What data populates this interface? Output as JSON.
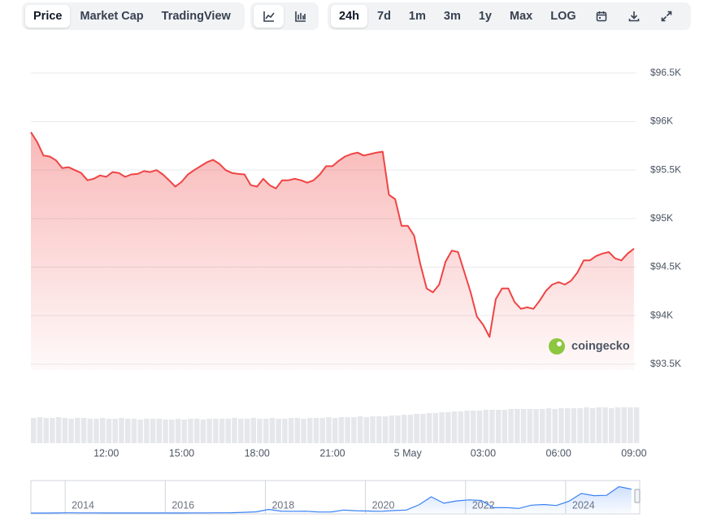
{
  "toolbar": {
    "views": [
      "Price",
      "Market Cap",
      "TradingView"
    ],
    "ranges": [
      "24h",
      "7d",
      "1m",
      "3m",
      "1y",
      "Max",
      "LOG"
    ]
  },
  "chart_data": [
    {
      "type": "line",
      "area": true,
      "color": "#ef4444",
      "grid": true,
      "watermark": "coingecko",
      "values": [
        95890,
        95790,
        95650,
        95640,
        95600,
        95520,
        95530,
        95500,
        95470,
        95395,
        95410,
        95445,
        95430,
        95480,
        95470,
        95430,
        95455,
        95460,
        95490,
        95480,
        95500,
        95455,
        95395,
        95330,
        95380,
        95455,
        95500,
        95540,
        95580,
        95605,
        95565,
        95500,
        95470,
        95460,
        95455,
        95345,
        95330,
        95410,
        95345,
        95310,
        95395,
        95395,
        95410,
        95395,
        95370,
        95395,
        95455,
        95540,
        95540,
        95595,
        95640,
        95665,
        95680,
        95650,
        95665,
        95680,
        95690,
        95245,
        95200,
        94925,
        94925,
        94825,
        94530,
        94280,
        94240,
        94320,
        94555,
        94670,
        94655,
        94450,
        94240,
        93990,
        93905,
        93780,
        94170,
        94280,
        94280,
        94140,
        94070,
        94085,
        94070,
        94155,
        94255,
        94320,
        94345,
        94320,
        94360,
        94445,
        94570,
        94570,
        94615,
        94640,
        94655,
        94590,
        94570,
        94640,
        94690
      ],
      "xlim": [
        0,
        96.4
      ],
      "ylim": [
        93440,
        96750
      ],
      "xticks": [
        {
          "value": 12,
          "label": "12:00"
        },
        {
          "value": 24,
          "label": "15:00"
        },
        {
          "value": 36,
          "label": "18:00"
        },
        {
          "value": 48,
          "label": "21:00"
        },
        {
          "value": 60,
          "label": "5 May"
        },
        {
          "value": 72,
          "label": "03:00"
        },
        {
          "value": 84,
          "label": "06:00"
        },
        {
          "value": 96,
          "label": "09:00"
        }
      ],
      "yticks": [
        {
          "value": 96500,
          "label": "$96.5K"
        },
        {
          "value": 96000,
          "label": "$96K"
        },
        {
          "value": 95500,
          "label": "$95.5K"
        },
        {
          "value": 95000,
          "label": "$95K"
        },
        {
          "value": 94500,
          "label": "$94.5K"
        },
        {
          "value": 94000,
          "label": "$94K"
        },
        {
          "value": 93500,
          "label": "$93.5K"
        }
      ]
    },
    {
      "type": "bar",
      "color": "#e5e7eb",
      "xlim": [
        0,
        96.4
      ],
      "ylim": [
        0,
        45
      ],
      "values": [
        31,
        32,
        31,
        31,
        32,
        31,
        30,
        31,
        31,
        30,
        30,
        31,
        30,
        30,
        31,
        30,
        30,
        29,
        30,
        30,
        30,
        29,
        29,
        30,
        29,
        30,
        30,
        29,
        30,
        30,
        30,
        30,
        31,
        30,
        30,
        31,
        30,
        30,
        31,
        30,
        30,
        31,
        31,
        30,
        31,
        31,
        31,
        32,
        31,
        32,
        32,
        32,
        33,
        32,
        33,
        33,
        33,
        34,
        34,
        35,
        35,
        36,
        36,
        37,
        37,
        38,
        38,
        39,
        39,
        40,
        40,
        40,
        41,
        41,
        41,
        41,
        42,
        42,
        42,
        42,
        42,
        42,
        43,
        42,
        43,
        43,
        43,
        43,
        44,
        43,
        44,
        44,
        43,
        44,
        44,
        44,
        44
      ]
    },
    {
      "type": "line",
      "area": true,
      "color": "#3b82f6",
      "xlim": [
        0,
        48.4
      ],
      "ylim": [
        0,
        110000
      ],
      "values": [
        100,
        100,
        200,
        800,
        450,
        600,
        400,
        300,
        250,
        260,
        240,
        430,
        420,
        670,
        610,
        1000,
        1100,
        2500,
        4300,
        13000,
        7000,
        6400,
        6600,
        3700,
        4100,
        10800,
        8300,
        7200,
        6400,
        9100,
        10800,
        29000,
        58000,
        35000,
        43000,
        47000,
        45000,
        19000,
        19500,
        16500,
        28000,
        30500,
        27000,
        42000,
        70000,
        62000,
        63000,
        94000,
        85000
      ],
      "xticks": [
        {
          "value": 3,
          "label": "2014"
        },
        {
          "value": 11,
          "label": "2016"
        },
        {
          "value": 19,
          "label": "2018"
        },
        {
          "value": 27,
          "label": "2020"
        },
        {
          "value": 35,
          "label": "2022"
        },
        {
          "value": 43,
          "label": "2024"
        }
      ]
    }
  ]
}
